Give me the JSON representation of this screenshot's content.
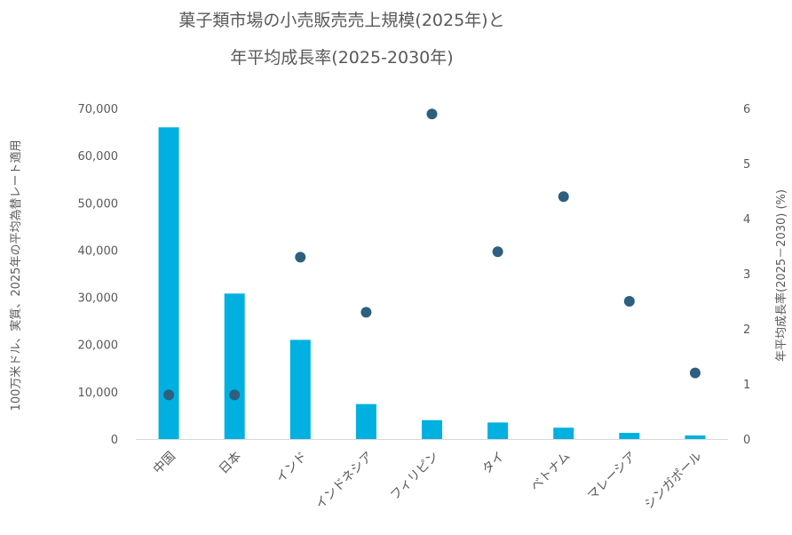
{
  "chart_data": {
    "type": "bar",
    "title_line1": "菓子類市場の小売販売売上規模(2025年)と",
    "title_line2": "年平均成長率(2025-2030年)",
    "categories": [
      "中国",
      "日本",
      "インド",
      "インドネシア",
      "フィリピン",
      "タイ",
      "ベトナム",
      "マレーシア",
      "シンガポール"
    ],
    "series": [
      {
        "type": "bar",
        "axis": "left",
        "color": "#00b0e0",
        "values": [
          66000,
          30800,
          21000,
          7400,
          4000,
          3500,
          2400,
          1300,
          750
        ]
      },
      {
        "type": "scatter",
        "axis": "right",
        "color": "#2e5f7e",
        "values": [
          0.8,
          0.8,
          3.3,
          2.3,
          5.9,
          3.4,
          4.4,
          2.5,
          1.2
        ]
      }
    ],
    "ylabel": "100万米ドル、実質、2025年の平均為替レート適用",
    "y2label": "年平均成長率(2025－2030) (%)",
    "ylim": [
      0,
      70000
    ],
    "y2lim": [
      0,
      6
    ],
    "yticks": [
      "0",
      "10,000",
      "20,000",
      "30,000",
      "40,000",
      "50,000",
      "60,000",
      "70,000"
    ],
    "y2ticks": [
      "0",
      "1",
      "2",
      "3",
      "4",
      "5",
      "6"
    ],
    "grid": false,
    "legend": "none"
  }
}
